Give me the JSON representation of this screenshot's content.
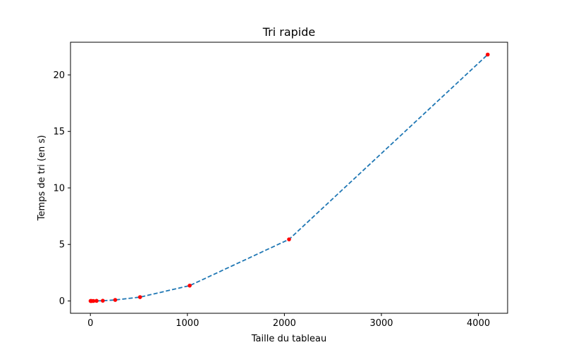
{
  "chart_data": {
    "type": "line",
    "title": "Tri rapide",
    "xlabel": "Taille du tableau",
    "ylabel": "Temps de tri (en s)",
    "xlim": [
      -205,
      4301
    ],
    "ylim": [
      -1.09,
      22.89
    ],
    "xticks": [
      0,
      1000,
      2000,
      3000,
      4000
    ],
    "yticks": [
      0,
      5,
      10,
      15,
      20
    ],
    "grid": false,
    "series": [
      {
        "x": [
          2,
          4,
          8,
          16,
          32,
          64,
          128,
          256,
          512,
          1024,
          2048,
          4096
        ],
        "y": [
          0.0,
          0.0,
          0.0,
          0.0,
          0.0,
          0.01,
          0.02,
          0.09,
          0.34,
          1.36,
          5.45,
          21.8
        ],
        "line_color": "#1f77b4",
        "line_style": "dashed",
        "marker_color": "#ff0000"
      }
    ]
  }
}
